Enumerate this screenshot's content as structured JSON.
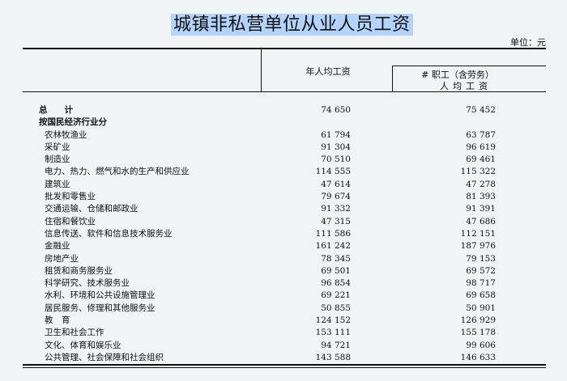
{
  "title": "城镇非私营单位从业人员工资",
  "unit": "单位：元",
  "headers": {
    "col1": "年人均工资",
    "col2_line1": "# 职工（含劳务）",
    "col2_line2": "人均工资"
  },
  "rows": [
    {
      "label": "总　　计",
      "v1": "74 650",
      "v2": "75 452",
      "bold": true
    },
    {
      "label": "按国民经济行业分",
      "v1": "",
      "v2": "",
      "bold": true
    },
    {
      "label": "农林牧渔业",
      "v1": "61 794",
      "v2": "63 787"
    },
    {
      "label": "采矿业",
      "v1": "91 304",
      "v2": "96 619"
    },
    {
      "label": "制造业",
      "v1": "70 510",
      "v2": "69 461"
    },
    {
      "label": "电力、热力、燃气和水的生产和供应业",
      "v1": "114 555",
      "v2": "115 322"
    },
    {
      "label": "建筑业",
      "v1": "47 614",
      "v2": "47 278"
    },
    {
      "label": "批发和零售业",
      "v1": "79 674",
      "v2": "81 393"
    },
    {
      "label": "交通运输、仓储和邮政业",
      "v1": "91 332",
      "v2": "91 391"
    },
    {
      "label": "住宿和餐饮业",
      "v1": "47 315",
      "v2": "47 686"
    },
    {
      "label": "信息传送、软件和信息技术服务业",
      "v1": "111 586",
      "v2": "112 151"
    },
    {
      "label": "金融业",
      "v1": "161 242",
      "v2": "187 976"
    },
    {
      "label": "房地产业",
      "v1": "78 345",
      "v2": "79 153"
    },
    {
      "label": "租赁和商务服务业",
      "v1": "69 501",
      "v2": "69 572"
    },
    {
      "label": "科学研究、技术服务业",
      "v1": "96 854",
      "v2": "98 717"
    },
    {
      "label": "水利、环境和公共设施管理业",
      "v1": "69 221",
      "v2": "69 658"
    },
    {
      "label": "居民服务、修理和其他服务业",
      "v1": "50 855",
      "v2": "50 901"
    },
    {
      "label": "教　育",
      "v1": "124 152",
      "v2": "126 929"
    },
    {
      "label": "卫生和社会工作",
      "v1": "153 111",
      "v2": "155 178"
    },
    {
      "label": "文化、体育和娱乐业",
      "v1": "94 721",
      "v2": "99 606"
    },
    {
      "label": "公共管理、社会保障和社会组织",
      "v1": "143 588",
      "v2": "146 633"
    }
  ]
}
